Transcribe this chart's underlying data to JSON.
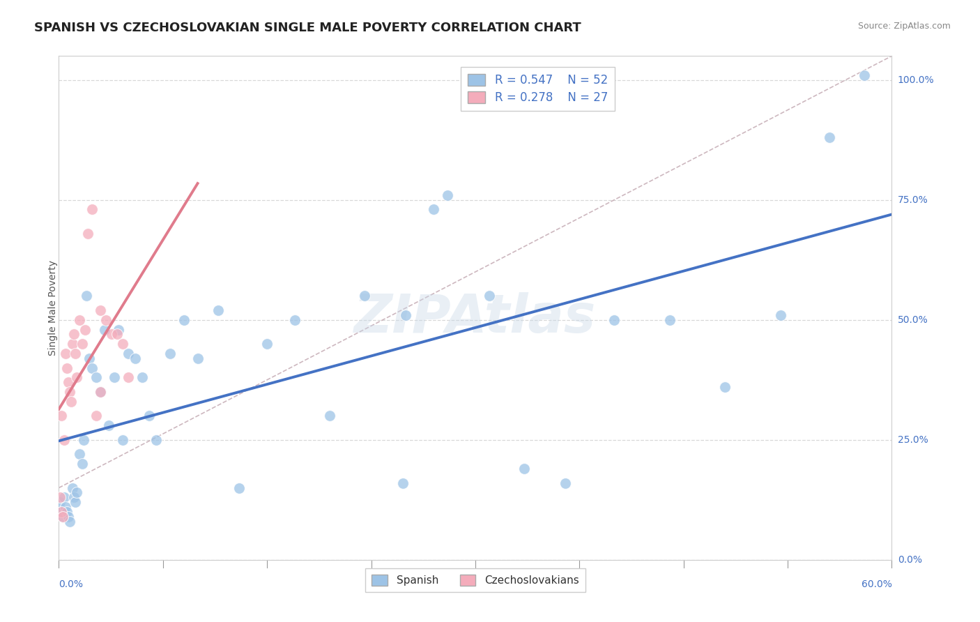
{
  "title": "SPANISH VS CZECHOSLOVAKIAN SINGLE MALE POVERTY CORRELATION CHART",
  "source": "Source: ZipAtlas.com",
  "ylabel": "Single Male Poverty",
  "right_ytick_vals": [
    0.0,
    0.25,
    0.5,
    0.75,
    1.0
  ],
  "right_ytick_labels": [
    "0.0%",
    "25.0%",
    "50.0%",
    "75.0%",
    "100.0%"
  ],
  "xlim": [
    0.0,
    0.6
  ],
  "ylim": [
    0.0,
    1.05
  ],
  "xlim_left_label": "0.0%",
  "xlim_right_label": "60.0%",
  "watermark": "ZIPAtlas",
  "spanish_line_color": "#4472c4",
  "czech_line_color": "#e07b8c",
  "scatter_blue": "#9dc3e6",
  "scatter_pink": "#f4acbb",
  "bg_color": "#ffffff",
  "grid_color": "#d8d8d8",
  "diag_color": "#c8b8b8",
  "title_fontsize": 13,
  "axis_label_fontsize": 10,
  "tick_fontsize": 10,
  "legend_fontsize": 12,
  "spanish_scatter_x": [
    0.001,
    0.002,
    0.003,
    0.004,
    0.005,
    0.006,
    0.007,
    0.008,
    0.01,
    0.011,
    0.012,
    0.013,
    0.015,
    0.017,
    0.018,
    0.02,
    0.022,
    0.024,
    0.027,
    0.03,
    0.033,
    0.036,
    0.04,
    0.043,
    0.046,
    0.05,
    0.055,
    0.06,
    0.065,
    0.07,
    0.08,
    0.09,
    0.1,
    0.115,
    0.13,
    0.15,
    0.17,
    0.195,
    0.22,
    0.25,
    0.28,
    0.31,
    0.335,
    0.365,
    0.4,
    0.44,
    0.48,
    0.52,
    0.27,
    0.555,
    0.58,
    0.248
  ],
  "spanish_scatter_y": [
    0.12,
    0.1,
    0.09,
    0.13,
    0.11,
    0.1,
    0.09,
    0.08,
    0.15,
    0.13,
    0.12,
    0.14,
    0.22,
    0.2,
    0.25,
    0.55,
    0.42,
    0.4,
    0.38,
    0.35,
    0.48,
    0.28,
    0.38,
    0.48,
    0.25,
    0.43,
    0.42,
    0.38,
    0.3,
    0.25,
    0.43,
    0.5,
    0.42,
    0.52,
    0.15,
    0.45,
    0.5,
    0.3,
    0.55,
    0.51,
    0.76,
    0.55,
    0.19,
    0.16,
    0.5,
    0.5,
    0.36,
    0.51,
    0.73,
    0.88,
    1.01,
    0.16
  ],
  "czech_scatter_x": [
    0.001,
    0.002,
    0.003,
    0.004,
    0.005,
    0.006,
    0.007,
    0.008,
    0.009,
    0.01,
    0.011,
    0.012,
    0.013,
    0.015,
    0.017,
    0.019,
    0.021,
    0.024,
    0.027,
    0.03,
    0.034,
    0.038,
    0.042,
    0.046,
    0.05,
    0.03,
    0.002
  ],
  "czech_scatter_y": [
    0.13,
    0.1,
    0.09,
    0.25,
    0.43,
    0.4,
    0.37,
    0.35,
    0.33,
    0.45,
    0.47,
    0.43,
    0.38,
    0.5,
    0.45,
    0.48,
    0.68,
    0.73,
    0.3,
    0.52,
    0.5,
    0.47,
    0.47,
    0.45,
    0.38,
    0.35,
    0.3
  ]
}
